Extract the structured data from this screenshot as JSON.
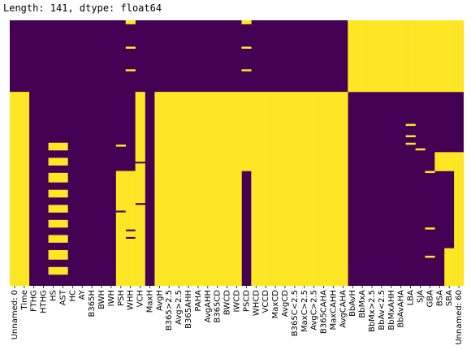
{
  "output": {
    "header_text": "Length: 141, dtype: float64"
  },
  "chart_data": {
    "type": "heatmap",
    "rows": 141,
    "value_colors": {
      "0": "#440154",
      "1": "#fde725"
    },
    "columns": [
      "Unnamed: 0",
      "Time",
      "FTHG",
      "HTHG",
      "HS",
      "AST",
      "HC",
      "AY",
      "B365H",
      "BWH",
      "IWH",
      "PSH",
      "WHH",
      "VCH",
      "MaxH",
      "AvgH",
      "B365>2.5",
      "Avg>2.5",
      "B365AHH",
      "PAHA",
      "AvgAHH",
      "B365CD",
      "BWCD",
      "IWCD",
      "PSCD",
      "WHCD",
      "VCCD",
      "MaxCD",
      "AvgCD",
      "B365C<2.5",
      "MaxC>2.5",
      "AvgC>2.5",
      "B365CAHA",
      "MaxCAHH",
      "AvgCAHA",
      "BbAvH",
      "BbMxA",
      "BbMx>2.5",
      "BbAv<2.5",
      "BbMxAHH",
      "BbAvAHA",
      "LBA",
      "SJA",
      "GBA",
      "BSA",
      "SBA",
      "Unnamed: 60"
    ],
    "xtick_labels": [
      "Unnamed: 0",
      "Time",
      "FTHG",
      "HTHG",
      "HS",
      "AST",
      "HC",
      "AY",
      "B365H",
      "BWH",
      "IWH",
      "PSH",
      "WHH",
      "VCH",
      "MaxH",
      "AvgH",
      "B365>2.5",
      "Avg>2.5",
      "B365AHH",
      "PAHA",
      "AvgAHH",
      "B365CD",
      "BWCD",
      "IWCD",
      "PSCD",
      "WHCD",
      "VCCD",
      "MaxCD",
      "AvgCD",
      "B365C<2.5",
      "MaxC>2.5",
      "AvgC>2.5",
      "B365CAHA",
      "MaxCAHH",
      "AvgCAHA",
      "BbAvH",
      "BbMxA",
      "BbMx>2.5",
      "BbAv<2.5",
      "BbMxAHH",
      "BbAvAHA",
      "LBA",
      "SJA",
      "GBA",
      "BSA",
      "SBA",
      "Unnamed: 60"
    ],
    "fill_ranges": [
      {
        "cols": [
          0,
          0
        ],
        "rows": [
          [
            38,
            141
          ]
        ]
      },
      {
        "cols": [
          1,
          1
        ],
        "rows": [
          [
            38,
            141
          ]
        ]
      },
      {
        "cols": [
          4,
          5
        ],
        "rows": [
          [
            65,
            69
          ],
          [
            73,
            77
          ],
          [
            81,
            86
          ],
          [
            90,
            94
          ],
          [
            98,
            102
          ],
          [
            106,
            110
          ],
          [
            114,
            118
          ],
          [
            122,
            127
          ],
          [
            131,
            135
          ]
        ]
      },
      {
        "cols": [
          11,
          11
        ],
        "rows": [
          [
            66,
            67
          ],
          [
            80,
            141
          ]
        ]
      },
      {
        "cols": [
          12,
          12
        ],
        "rows": [
          [
            0,
            2
          ],
          [
            14,
            15
          ],
          [
            26,
            27
          ],
          [
            80,
            141
          ]
        ]
      },
      {
        "cols": [
          13,
          34
        ],
        "rows": [
          [
            38,
            141
          ]
        ]
      },
      {
        "cols": [
          24,
          24
        ],
        "rows": [
          [
            0,
            2
          ],
          [
            14,
            15
          ],
          [
            26,
            27
          ],
          [
            38,
            141
          ]
        ]
      },
      {
        "cols": [
          35,
          46
        ],
        "rows": [
          [
            0,
            38
          ]
        ]
      },
      {
        "cols": [
          41,
          41
        ],
        "rows": [
          [
            55,
            56
          ],
          [
            61,
            62
          ],
          [
            65,
            66
          ]
        ]
      },
      {
        "cols": [
          42,
          42
        ],
        "rows": [
          [
            68,
            69
          ]
        ]
      },
      {
        "cols": [
          43,
          43
        ],
        "rows": [
          [
            80,
            81
          ],
          [
            110,
            111
          ],
          [
            125,
            126
          ]
        ]
      },
      {
        "cols": [
          44,
          46
        ],
        "rows": [
          [
            70,
            141
          ]
        ]
      },
      {
        "cols": [
          45,
          45
        ],
        "rows": [
          [
            80,
            141
          ]
        ]
      },
      {
        "cols": [
          46,
          46
        ],
        "rows": [
          [
            70,
            141
          ]
        ]
      }
    ],
    "dark_overrides": [
      {
        "cols": [
          11,
          11
        ],
        "rows": [
          [
            101,
            102
          ]
        ]
      },
      {
        "cols": [
          12,
          12
        ],
        "rows": [
          [
            111,
            112
          ],
          [
            115,
            116
          ]
        ]
      },
      {
        "cols": [
          13,
          13
        ],
        "rows": [
          [
            75,
            76
          ],
          [
            97,
            98
          ]
        ]
      },
      {
        "cols": [
          14,
          14
        ],
        "rows": [
          [
            38,
            141
          ]
        ]
      },
      {
        "cols": [
          24,
          24
        ],
        "rows": [
          [
            80,
            141
          ]
        ]
      },
      {
        "cols": [
          44,
          44
        ],
        "rows": [
          [
            80,
            141
          ]
        ]
      },
      {
        "cols": [
          45,
          45
        ],
        "rows": [
          [
            80,
            121
          ]
        ]
      }
    ]
  }
}
